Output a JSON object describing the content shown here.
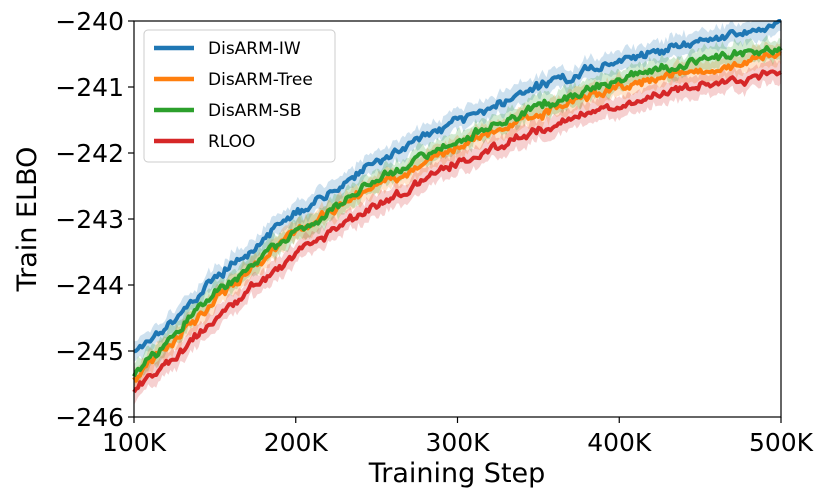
{
  "chart_data": {
    "type": "line",
    "xlabel": "Training Step",
    "ylabel": "Train ELBO",
    "xlim": [
      100000,
      500000
    ],
    "ylim": [
      -246,
      -240
    ],
    "xticks": [
      {
        "value": 100000,
        "label": "100K"
      },
      {
        "value": 200000,
        "label": "200K"
      },
      {
        "value": 300000,
        "label": "300K"
      },
      {
        "value": 400000,
        "label": "400K"
      },
      {
        "value": 500000,
        "label": "500K"
      }
    ],
    "yticks": [
      {
        "value": -246,
        "label": "−246"
      },
      {
        "value": -245,
        "label": "−245"
      },
      {
        "value": -244,
        "label": "−244"
      },
      {
        "value": -243,
        "label": "−243"
      },
      {
        "value": -242,
        "label": "−242"
      },
      {
        "value": -241,
        "label": "−241"
      },
      {
        "value": -240,
        "label": "−240"
      }
    ],
    "grid": false,
    "legend_position": "top-left",
    "x": [
      100000,
      125000,
      150000,
      175000,
      200000,
      225000,
      250000,
      275000,
      300000,
      325000,
      350000,
      375000,
      400000,
      425000,
      450000,
      475000,
      500000
    ],
    "series": [
      {
        "name": "DisARM-IW",
        "color": "#1f77b4",
        "values": [
          -245.0,
          -244.5,
          -243.9,
          -243.4,
          -242.9,
          -242.55,
          -242.15,
          -241.8,
          -241.5,
          -241.25,
          -241.0,
          -240.8,
          -240.6,
          -240.45,
          -240.3,
          -240.2,
          -240.05
        ]
      },
      {
        "name": "DisARM-Tree",
        "color": "#ff7f0e",
        "values": [
          -245.4,
          -244.85,
          -244.2,
          -243.7,
          -243.2,
          -242.85,
          -242.5,
          -242.2,
          -241.9,
          -241.65,
          -241.4,
          -241.2,
          -241.0,
          -240.85,
          -240.75,
          -240.65,
          -240.5
        ]
      },
      {
        "name": "DisARM-SB",
        "color": "#2ca02c",
        "values": [
          -245.35,
          -244.75,
          -244.15,
          -243.65,
          -243.2,
          -242.8,
          -242.4,
          -242.1,
          -241.8,
          -241.55,
          -241.3,
          -241.1,
          -240.9,
          -240.75,
          -240.6,
          -240.5,
          -240.4
        ]
      },
      {
        "name": "RLOO",
        "color": "#d62728",
        "values": [
          -245.6,
          -245.1,
          -244.5,
          -244.0,
          -243.5,
          -243.15,
          -242.8,
          -242.45,
          -242.15,
          -241.9,
          -241.65,
          -241.45,
          -241.25,
          -241.1,
          -240.95,
          -240.9,
          -240.8
        ]
      }
    ]
  }
}
